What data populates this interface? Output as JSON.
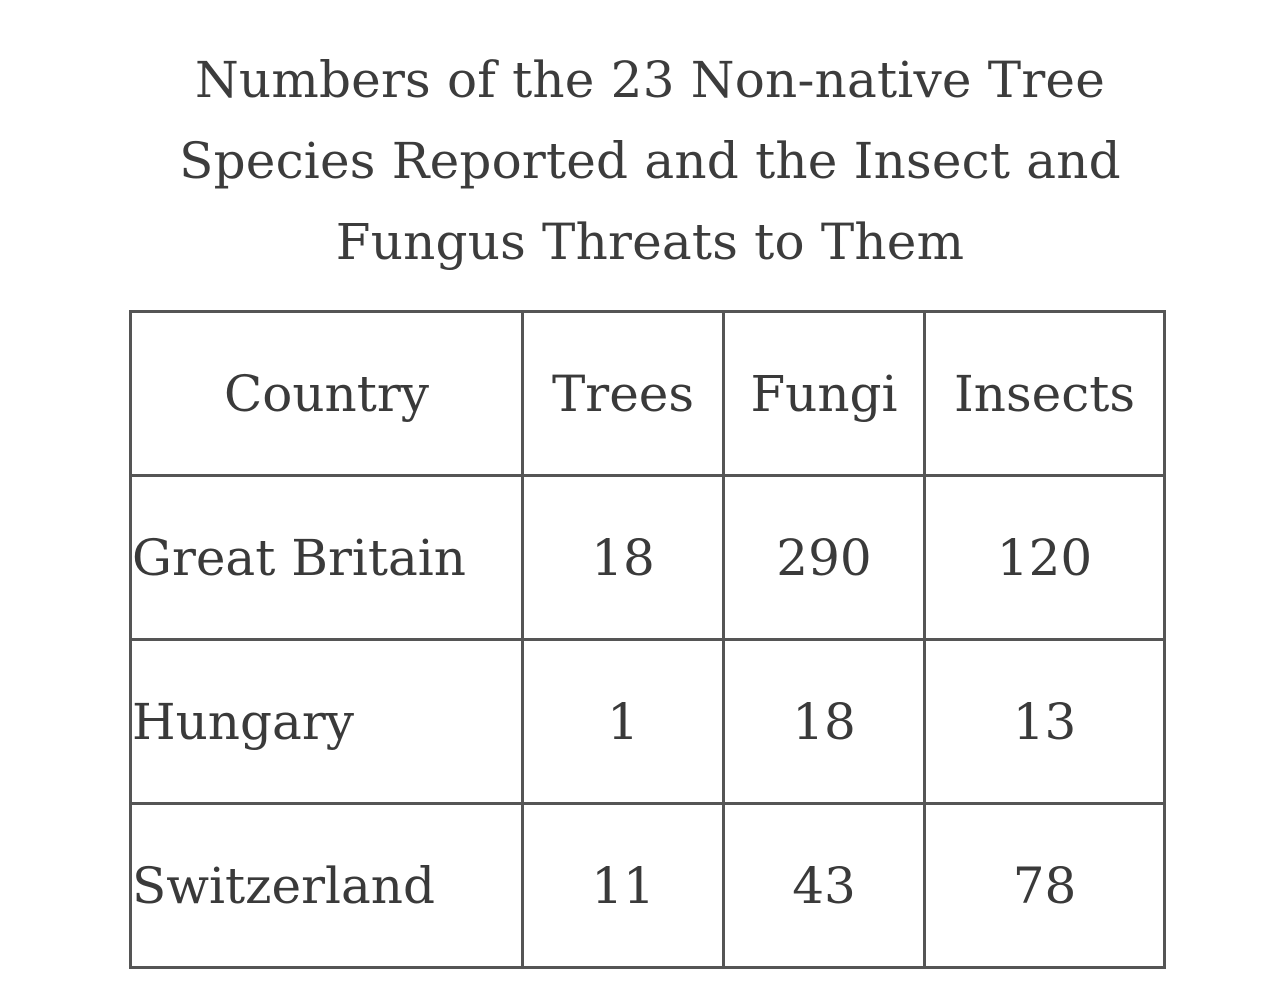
{
  "chart_data": {
    "type": "table",
    "title_lines": [
      "Numbers of the 23 Non-native Tree",
      "Species Reported and the Insect and",
      "Fungus Threats to Them"
    ],
    "columns": [
      "Country",
      "Trees",
      "Fungi",
      "Insects"
    ],
    "rows": [
      {
        "country": "Great Britain",
        "trees": "18",
        "fungi": "290",
        "insects": "120"
      },
      {
        "country": "Hungary",
        "trees": "1",
        "fungi": "18",
        "insects": "13"
      },
      {
        "country": "Switzerland",
        "trees": "11",
        "fungi": "43",
        "insects": "78"
      }
    ]
  }
}
